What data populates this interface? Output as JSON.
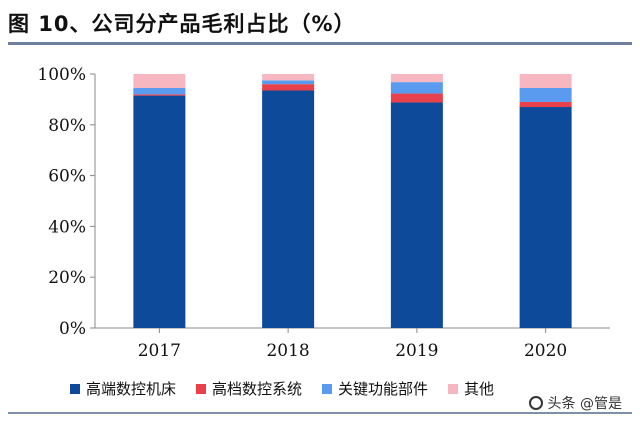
{
  "title": "图 10、公司分产品毛利占比（%）",
  "watermark": "头条 @管是",
  "chart_data": {
    "type": "bar",
    "stacked": true,
    "categories": [
      "2017",
      "2018",
      "2019",
      "2020"
    ],
    "series": [
      {
        "name": "高端数控机床",
        "color": "#0d4a9a",
        "values": [
          91.5,
          93.5,
          88.8,
          87.0
        ]
      },
      {
        "name": "高档数控系统",
        "color": "#e8414b",
        "values": [
          0.5,
          2.5,
          3.5,
          2.0
        ]
      },
      {
        "name": "关键功能部件",
        "color": "#5b9bef",
        "values": [
          2.5,
          1.5,
          4.5,
          5.5
        ]
      },
      {
        "name": "其他",
        "color": "#f7b7c0",
        "values": [
          5.5,
          2.5,
          3.2,
          5.5
        ]
      }
    ],
    "yticks": [
      "0%",
      "20%",
      "40%",
      "60%",
      "80%",
      "100%"
    ],
    "ylim": [
      0,
      100
    ],
    "legend_position": "bottom"
  }
}
